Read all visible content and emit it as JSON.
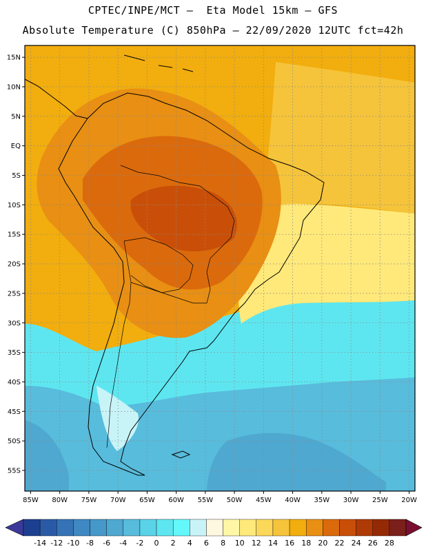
{
  "header": {
    "line1": "CPTEC/INPE/MCT –  Eta Model 15km – GFS",
    "line2": "Absolute Temperature (C) 850hPa – 22/09/2020 12UTC fct=42h"
  },
  "axes": {
    "lat_labels": [
      "15N",
      "10N",
      "5N",
      "EQ",
      "5S",
      "10S",
      "15S",
      "20S",
      "25S",
      "30S",
      "35S",
      "40S",
      "45S",
      "50S",
      "55S"
    ],
    "lat_values": [
      15,
      10,
      5,
      0,
      -5,
      -10,
      -15,
      -20,
      -25,
      -30,
      -35,
      -40,
      -45,
      -50,
      -55
    ],
    "lon_labels": [
      "85W",
      "80W",
      "75W",
      "70W",
      "65W",
      "60W",
      "55W",
      "50W",
      "45W",
      "40W",
      "35W",
      "30W",
      "25W",
      "20W"
    ],
    "lon_values": [
      -85,
      -80,
      -75,
      -70,
      -65,
      -60,
      -55,
      -50,
      -45,
      -40,
      -35,
      -30,
      -25,
      -20
    ],
    "lon_range": [
      -86,
      -19
    ],
    "lat_range": [
      -58.5,
      17
    ]
  },
  "colorbar": {
    "labels": [
      "-14",
      "-12",
      "-10",
      "-8",
      "-6",
      "-4",
      "-2",
      "0",
      "2",
      "4",
      "6",
      "8",
      "10",
      "12",
      "14",
      "16",
      "18",
      "20",
      "22",
      "24",
      "26",
      "28"
    ],
    "colors": [
      "#1d3f8f",
      "#2a5aa6",
      "#3573b6",
      "#3f88c2",
      "#4698c8",
      "#4fa8d0",
      "#58bcdc",
      "#5ad2e8",
      "#5ee6f0",
      "#64f8fb",
      "#c8f4f8",
      "#fff8e0",
      "#fff7a6",
      "#ffe97a",
      "#fcd85a",
      "#f5c43a",
      "#f2ad0e",
      "#e88f14",
      "#db6a0c",
      "#c94f08",
      "#b03a06",
      "#942a05",
      "#7a1f1a"
    ],
    "under_color": "#3b3a9a",
    "over_color": "#7a1030"
  },
  "map": {
    "regions": [
      {
        "name": "ocean-north",
        "color": "#f2ad0e"
      },
      {
        "name": "continent-warm",
        "color": "#e88f14"
      },
      {
        "name": "amazon-hot",
        "color": "#db6a0c"
      },
      {
        "name": "central-core",
        "color": "#c94f08"
      },
      {
        "name": "atlantic-mild",
        "color": "#f5c43a"
      },
      {
        "name": "brazil-coast-warm",
        "color": "#ffe97a"
      },
      {
        "name": "southern-cool",
        "color": "#5ee6f0"
      },
      {
        "name": "southern-ocean",
        "color": "#58bcdc"
      },
      {
        "name": "cold-patch",
        "color": "#4fa8d0"
      },
      {
        "name": "andes-cold",
        "color": "#c8f4f8"
      }
    ]
  }
}
